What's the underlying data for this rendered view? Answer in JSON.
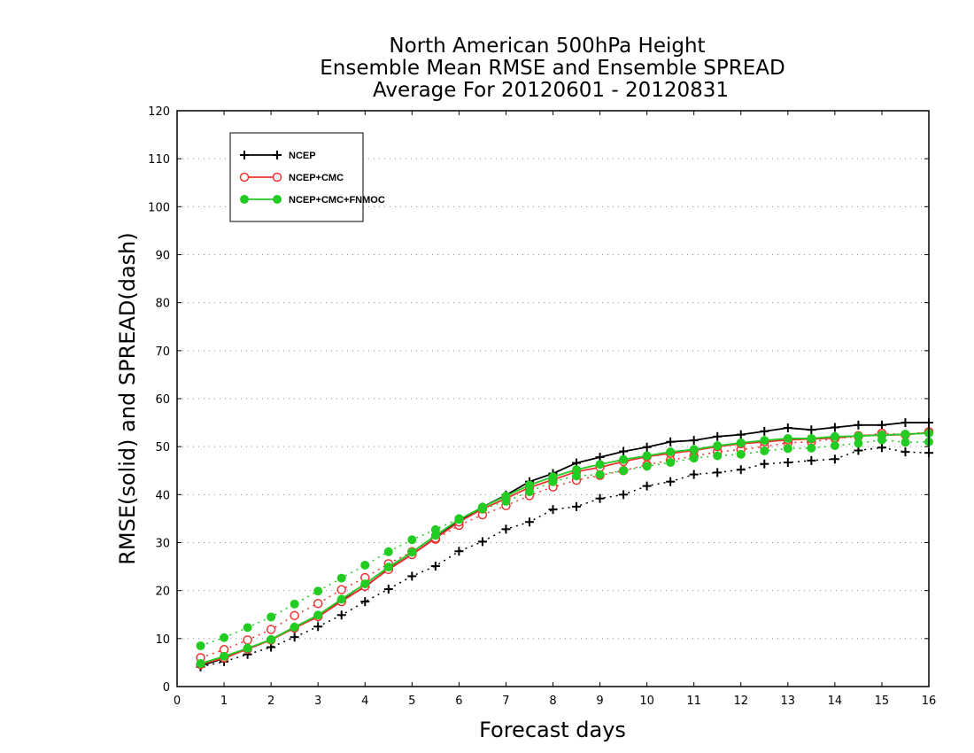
{
  "chart_data": {
    "type": "line",
    "title": [
      "North American 500hPa Height",
      "Ensemble Mean RMSE and Ensemble SPREAD",
      "Average For 20120601 - 20120831"
    ],
    "xlabel": "Forecast days",
    "ylabel": "RMSE(solid) and SPREAD(dash)",
    "xlim": [
      0,
      16
    ],
    "ylim": [
      0,
      120
    ],
    "xticks": [
      0,
      1,
      2,
      3,
      4,
      5,
      6,
      7,
      8,
      9,
      10,
      11,
      12,
      13,
      14,
      15,
      16
    ],
    "yticks": [
      0,
      10,
      20,
      30,
      40,
      50,
      60,
      70,
      80,
      90,
      100,
      110,
      120
    ],
    "grid": "horizontal-dotted",
    "legend_position": "top-left",
    "x": [
      0.5,
      1,
      1.5,
      2,
      2.5,
      3,
      3.5,
      4,
      4.5,
      5,
      5.5,
      6,
      6.5,
      7,
      7.5,
      8,
      8.5,
      9,
      9.5,
      10,
      10.5,
      11,
      11.5,
      12,
      12.5,
      13,
      13.5,
      14,
      14.5,
      15,
      15.5,
      16
    ],
    "series": [
      {
        "name": "NCEP",
        "color": "#000000",
        "marker": "plus",
        "rmse": [
          4.3,
          5.9,
          7.9,
          9.8,
          12.4,
          14.5,
          17.9,
          20.8,
          24.5,
          27.5,
          31.0,
          34.5,
          37.4,
          39.9,
          42.7,
          44.4,
          46.6,
          47.8,
          49.0,
          49.9,
          51.0,
          51.3,
          52.1,
          52.5,
          53.2,
          53.9,
          53.5,
          54.0,
          54.5,
          54.5,
          55.0,
          55.0
        ],
        "spread": [
          4.1,
          5.2,
          6.7,
          8.2,
          10.3,
          12.5,
          14.9,
          17.7,
          20.3,
          23.0,
          25.1,
          28.2,
          30.2,
          32.8,
          34.3,
          36.9,
          37.5,
          39.2,
          40.0,
          41.8,
          42.7,
          44.2,
          44.6,
          45.2,
          46.4,
          46.7,
          47.1,
          47.4,
          49.2,
          49.8,
          48.9,
          48.7
        ]
      },
      {
        "name": "NCEP+CMC",
        "color": "#ee3333",
        "marker": "open-circle",
        "rmse": [
          4.6,
          6.0,
          7.8,
          9.7,
          12.2,
          14.6,
          17.7,
          20.9,
          24.4,
          27.5,
          30.9,
          34.3,
          37.0,
          39.2,
          41.5,
          43.1,
          44.8,
          45.7,
          46.9,
          47.9,
          48.6,
          49.2,
          50.0,
          50.6,
          51.0,
          51.4,
          51.6,
          51.8,
          52.3,
          52.4,
          52.5,
          52.9
        ],
        "spread": [
          6.0,
          7.7,
          9.7,
          11.9,
          14.8,
          17.3,
          20.2,
          22.7,
          25.6,
          28.1,
          30.7,
          33.6,
          35.8,
          37.7,
          39.8,
          41.6,
          43.0,
          44.0,
          45.0,
          46.2,
          47.2,
          48.0,
          48.9,
          49.4,
          50.0,
          50.8,
          51.0,
          51.7,
          52.1,
          52.8,
          52.5,
          53.1
        ]
      },
      {
        "name": "NCEP+CMC+FNMOC",
        "color": "#22cc22",
        "marker": "filled-circle",
        "rmse": [
          4.8,
          6.3,
          8.0,
          9.8,
          12.4,
          14.9,
          18.2,
          21.4,
          24.9,
          28.0,
          31.5,
          34.8,
          37.4,
          39.7,
          42.0,
          43.7,
          45.2,
          46.3,
          47.3,
          48.1,
          48.9,
          49.4,
          50.2,
          50.8,
          51.3,
          51.7,
          51.7,
          52.1,
          52.2,
          52.4,
          52.6,
          52.8
        ],
        "spread": [
          8.5,
          10.2,
          12.3,
          14.5,
          17.2,
          19.9,
          22.6,
          25.3,
          28.1,
          30.6,
          32.7,
          35.0,
          37.0,
          38.6,
          40.6,
          42.7,
          43.9,
          44.2,
          45.0,
          45.9,
          46.7,
          47.6,
          48.1,
          48.4,
          49.1,
          49.6,
          49.7,
          50.2,
          50.7,
          51.4,
          50.9,
          51.0
        ]
      }
    ]
  }
}
